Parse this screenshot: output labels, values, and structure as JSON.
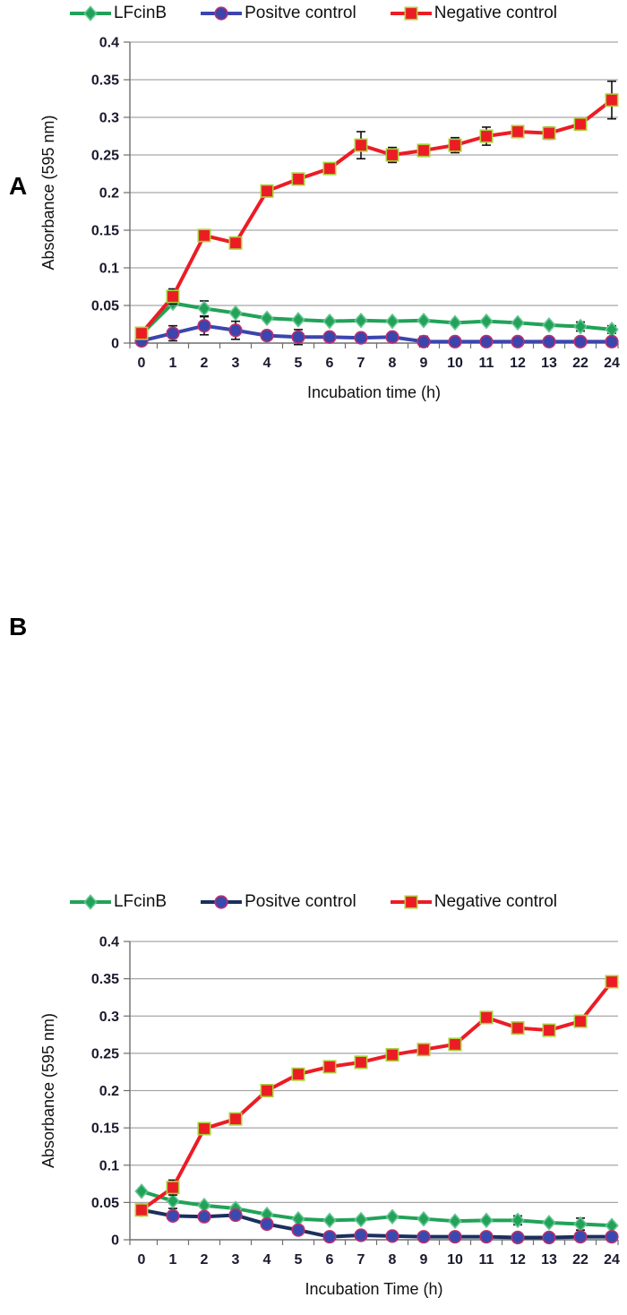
{
  "figure": {
    "panels": [
      {
        "panel_label": "A"
      },
      {
        "panel_label": "B"
      }
    ],
    "axis_text_color": "#1a1a2e",
    "grid_color": "#a6a6a6",
    "axis_line_color": "#6e6e6e",
    "error_bar_color": "#111111"
  },
  "chart_data": [
    {
      "type": "line",
      "panel": "A",
      "title": "",
      "categories": [
        "0",
        "1",
        "2",
        "3",
        "4",
        "5",
        "6",
        "7",
        "8",
        "9",
        "10",
        "11",
        "12",
        "13",
        "22",
        "24"
      ],
      "xlabel": "Incubation time (h)",
      "ylabel": "Absorbance (595 nm)",
      "ylim": [
        0,
        0.4
      ],
      "ytick_step": 0.05,
      "grid": true,
      "legend_position": "top",
      "series": [
        {
          "name": "LFcinB",
          "marker": "diamond",
          "color": "#21A258",
          "marker_fill": "#21A258",
          "marker_stroke": "#63C590",
          "values": [
            0.012,
            0.053,
            0.046,
            0.04,
            0.033,
            0.031,
            0.029,
            0.03,
            0.029,
            0.03,
            0.027,
            0.029,
            0.027,
            0.024,
            0.022,
            0.018
          ],
          "errors": [
            0,
            0,
            0.01,
            0,
            0,
            0,
            0,
            0,
            0,
            0,
            0,
            0,
            0,
            0,
            0.006,
            0.005
          ]
        },
        {
          "name": "Positve control",
          "marker": "circle",
          "color": "#3A45AE",
          "marker_fill": "#3A45AE",
          "marker_stroke": "#BE2E6E",
          "values": [
            0.003,
            0.013,
            0.023,
            0.017,
            0.01,
            0.008,
            0.008,
            0.007,
            0.008,
            0.002,
            0.002,
            0.002,
            0.002,
            0.002,
            0.002,
            0.002
          ],
          "errors": [
            0,
            0.01,
            0.012,
            0.012,
            0,
            0.01,
            0,
            0,
            0,
            0.007,
            0,
            0,
            0,
            0,
            0,
            0
          ]
        },
        {
          "name": "Negative control",
          "marker": "square",
          "color": "#EC1C24",
          "marker_fill": "#EC1C24",
          "marker_stroke": "#A8CF38",
          "values": [
            0.013,
            0.062,
            0.143,
            0.133,
            0.202,
            0.218,
            0.232,
            0.263,
            0.25,
            0.256,
            0.263,
            0.275,
            0.281,
            0.279,
            0.291,
            0.323
          ],
          "errors": [
            0.004,
            0.01,
            0.005,
            0.005,
            0.004,
            0.004,
            0.005,
            0.018,
            0.01,
            0.008,
            0.01,
            0.012,
            0.005,
            0.008,
            0.004,
            0.025
          ]
        }
      ]
    },
    {
      "type": "line",
      "panel": "B",
      "title": "",
      "categories": [
        "0",
        "1",
        "2",
        "3",
        "4",
        "5",
        "6",
        "7",
        "8",
        "9",
        "10",
        "11",
        "12",
        "13",
        "22",
        "24"
      ],
      "xlabel": "Incubation Time (h)",
      "ylabel": "Absorbance (595 nm)",
      "ylim": [
        0,
        0.4
      ],
      "ytick_step": 0.05,
      "grid": true,
      "legend_position": "top",
      "series": [
        {
          "name": "LFcinB",
          "marker": "diamond",
          "color": "#21A258",
          "marker_fill": "#21A258",
          "marker_stroke": "#63C590",
          "values": [
            0.065,
            0.052,
            0.046,
            0.042,
            0.034,
            0.028,
            0.026,
            0.027,
            0.031,
            0.028,
            0.025,
            0.026,
            0.026,
            0.023,
            0.021,
            0.019
          ],
          "errors": [
            0,
            0.01,
            0,
            0,
            0,
            0,
            0,
            0,
            0,
            0,
            0,
            0,
            0.006,
            0,
            0.008,
            0
          ]
        },
        {
          "name": "Positve control",
          "marker": "circle",
          "color": "#1B2F5E",
          "marker_fill": "#3A49B0",
          "marker_stroke": "#BE2E6E",
          "values": [
            0.04,
            0.032,
            0.031,
            0.033,
            0.021,
            0.013,
            0.004,
            0.006,
            0.005,
            0.004,
            0.004,
            0.004,
            0.003,
            0.003,
            0.004,
            0.004
          ],
          "errors": [
            0,
            0,
            0,
            0,
            0,
            0,
            0,
            0,
            0,
            0,
            0,
            0,
            0,
            0,
            0,
            0
          ]
        },
        {
          "name": "Negative control",
          "marker": "square",
          "color": "#EC1C24",
          "marker_fill": "#EC1C24",
          "marker_stroke": "#A8CF38",
          "values": [
            0.04,
            0.07,
            0.149,
            0.162,
            0.2,
            0.222,
            0.232,
            0.238,
            0.248,
            0.255,
            0.262,
            0.298,
            0.284,
            0.281,
            0.293,
            0.346
          ],
          "errors": [
            0,
            0.01,
            0,
            0,
            0,
            0,
            0,
            0,
            0,
            0,
            0,
            0,
            0,
            0,
            0,
            0
          ]
        }
      ]
    }
  ]
}
